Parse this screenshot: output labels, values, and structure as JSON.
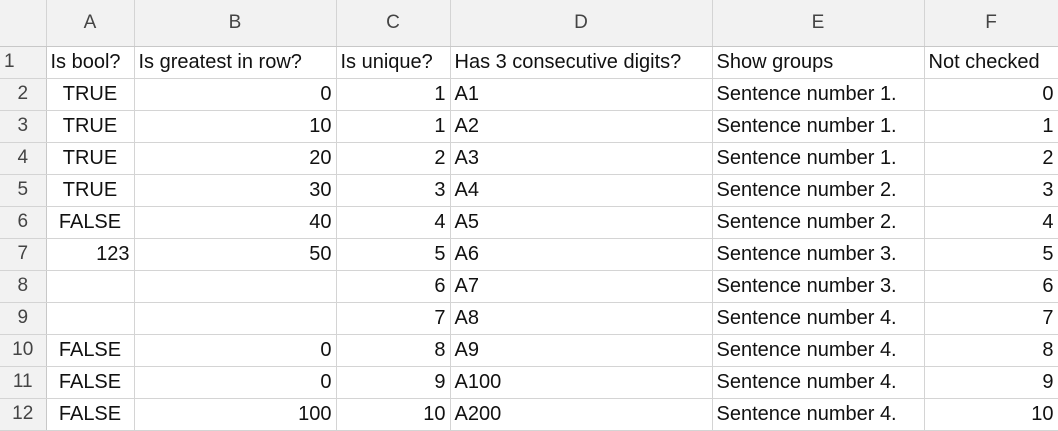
{
  "columns": [
    "A",
    "B",
    "C",
    "D",
    "E",
    "F"
  ],
  "rows": [
    {
      "n": "1",
      "a": "Is bool?",
      "b": "Is greatest in row?",
      "c": "Is unique?",
      "d": "Has 3 consecutive digits?",
      "e": "Show groups",
      "f": "Not checked"
    },
    {
      "n": "2",
      "a": "TRUE",
      "b": "0",
      "c": "1",
      "d": "A1",
      "e": "Sentence number 1.",
      "f": "0"
    },
    {
      "n": "3",
      "a": "TRUE",
      "b": "10",
      "c": "1",
      "d": "A2",
      "e": "Sentence number 1.",
      "f": "1"
    },
    {
      "n": "4",
      "a": "TRUE",
      "b": "20",
      "c": "2",
      "d": "A3",
      "e": "Sentence number 1.",
      "f": "2"
    },
    {
      "n": "5",
      "a": "TRUE",
      "b": "30",
      "c": "3",
      "d": "A4",
      "e": "Sentence number 2.",
      "f": "3"
    },
    {
      "n": "6",
      "a": "FALSE",
      "b": "40",
      "c": "4",
      "d": "A5",
      "e": "Sentence number 2.",
      "f": "4"
    },
    {
      "n": "7",
      "a": "123",
      "b": "50",
      "c": "5",
      "d": "A6",
      "e": "Sentence number 3.",
      "f": "5"
    },
    {
      "n": "8",
      "a": "",
      "b": "",
      "c": "6",
      "d": "A7",
      "e": "Sentence number 3.",
      "f": "6"
    },
    {
      "n": "9",
      "a": "",
      "b": "",
      "c": "7",
      "d": "A8",
      "e": "Sentence number 4.",
      "f": "7"
    },
    {
      "n": "10",
      "a": "FALSE",
      "b": "0",
      "c": "8",
      "d": "A9",
      "e": "Sentence number 4.",
      "f": "8"
    },
    {
      "n": "11",
      "a": "FALSE",
      "b": "0",
      "c": "9",
      "d": "A100",
      "e": "Sentence number 4.",
      "f": "9"
    },
    {
      "n": "12",
      "a": "FALSE",
      "b": "100",
      "c": "10",
      "d": "A200",
      "e": "Sentence number 4.",
      "f": "10"
    }
  ]
}
